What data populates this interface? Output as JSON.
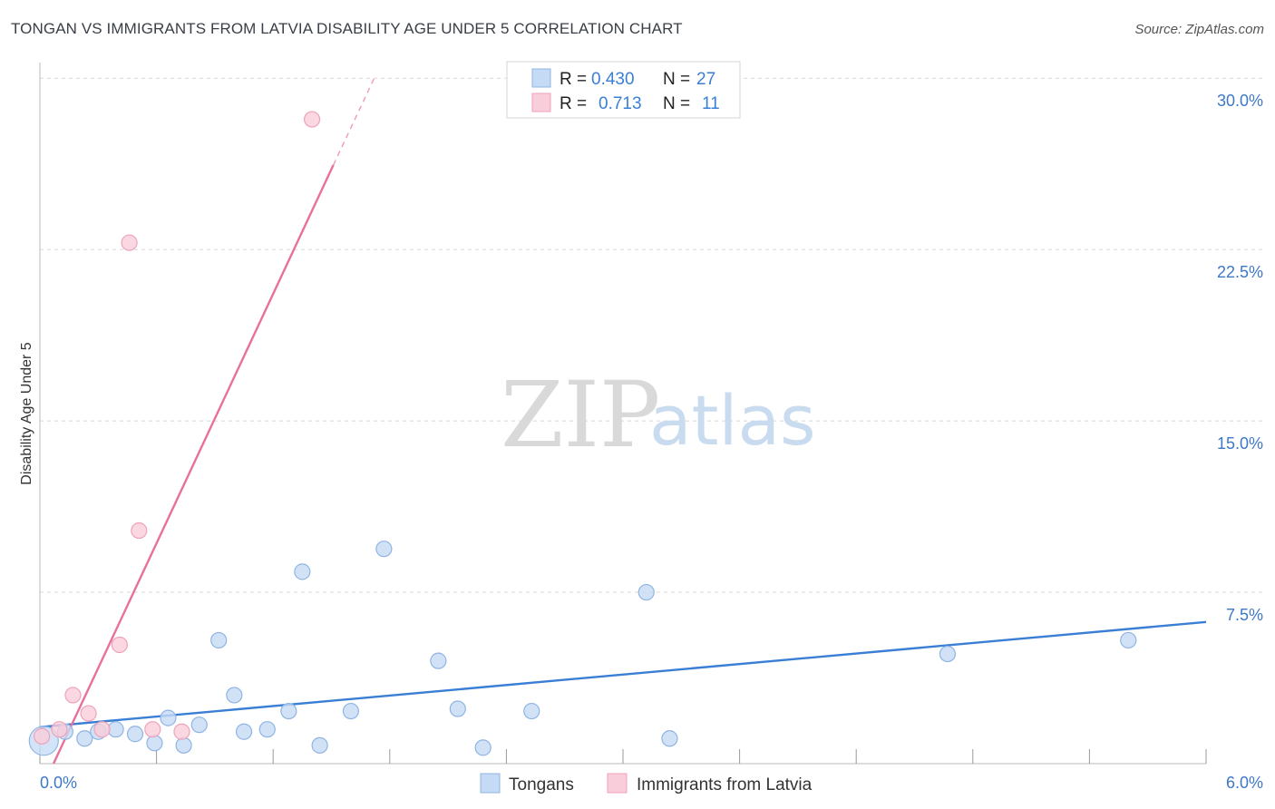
{
  "title": "TONGAN VS IMMIGRANTS FROM LATVIA DISABILITY AGE UNDER 5 CORRELATION CHART",
  "source": "Source: ZipAtlas.com",
  "watermark": {
    "part1": "ZIP",
    "part2": "atlas"
  },
  "legend_top": [
    {
      "r_label": "R =",
      "r_value": "0.430",
      "n_label": "N =",
      "n_value": "27",
      "color": "#a8c8ee"
    },
    {
      "r_label": "R =",
      "r_value": "0.713",
      "n_label": "N =",
      "n_value": "11",
      "color": "#f5b8ca"
    }
  ],
  "legend_bottom": [
    {
      "label": "Tongans",
      "color": "#a8c8ee"
    },
    {
      "label": "Immigrants from Latvia",
      "color": "#f5b8ca"
    }
  ],
  "colors": {
    "tongan": "#3a7fd5",
    "latvia": "#e8709a",
    "tongan_fill": "#c5dbf5",
    "latvia_fill": "#f9cdd9",
    "tick": "#3e78c8",
    "grid": "#d8d8d8"
  },
  "chart_data": {
    "type": "scatter",
    "title": "TONGAN VS IMMIGRANTS FROM LATVIA DISABILITY AGE UNDER 5 CORRELATION CHART",
    "xlabel": "",
    "ylabel": "Disability Age Under 5",
    "xlim": [
      0,
      6
    ],
    "ylim": [
      0,
      31
    ],
    "x_tick_labels": [
      "0.0%",
      "6.0%"
    ],
    "y_ticks": [
      7.5,
      15.0,
      22.5,
      30.0
    ],
    "y_tick_labels": [
      "7.5%",
      "15.0%",
      "22.5%",
      "30.0%"
    ],
    "series": [
      {
        "name": "Tongans",
        "points": [
          [
            0.02,
            1.0
          ],
          [
            0.13,
            1.4
          ],
          [
            0.23,
            1.1
          ],
          [
            0.3,
            1.4
          ],
          [
            0.39,
            1.5
          ],
          [
            0.49,
            1.3
          ],
          [
            0.59,
            0.9
          ],
          [
            0.66,
            2.0
          ],
          [
            0.74,
            0.8
          ],
          [
            0.82,
            1.7
          ],
          [
            0.92,
            5.4
          ],
          [
            1.0,
            3.0
          ],
          [
            1.05,
            1.4
          ],
          [
            1.17,
            1.5
          ],
          [
            1.28,
            2.3
          ],
          [
            1.35,
            8.4
          ],
          [
            1.44,
            0.8
          ],
          [
            1.6,
            2.3
          ],
          [
            1.77,
            9.4
          ],
          [
            2.05,
            4.5
          ],
          [
            2.15,
            2.4
          ],
          [
            2.28,
            0.7
          ],
          [
            2.53,
            2.3
          ],
          [
            3.12,
            7.5
          ],
          [
            3.24,
            1.1
          ],
          [
            4.67,
            4.8
          ],
          [
            5.6,
            5.4
          ]
        ],
        "trend": {
          "x": [
            0.0,
            6.0
          ],
          "y": [
            1.6,
            6.2
          ]
        }
      },
      {
        "name": "Immigrants from Latvia",
        "points": [
          [
            0.01,
            1.2
          ],
          [
            0.1,
            1.5
          ],
          [
            0.17,
            3.0
          ],
          [
            0.25,
            2.2
          ],
          [
            0.32,
            1.5
          ],
          [
            0.41,
            5.2
          ],
          [
            0.46,
            22.8
          ],
          [
            0.51,
            10.2
          ],
          [
            0.58,
            1.5
          ],
          [
            0.73,
            1.4
          ],
          [
            1.4,
            28.2
          ]
        ],
        "trend": {
          "x": [
            0.07,
            1.51
          ],
          "y": [
            0.0,
            26.2
          ]
        },
        "trend_extension": {
          "x": [
            1.51,
            1.72
          ],
          "y": [
            26.2,
            30.0
          ]
        }
      }
    ]
  }
}
